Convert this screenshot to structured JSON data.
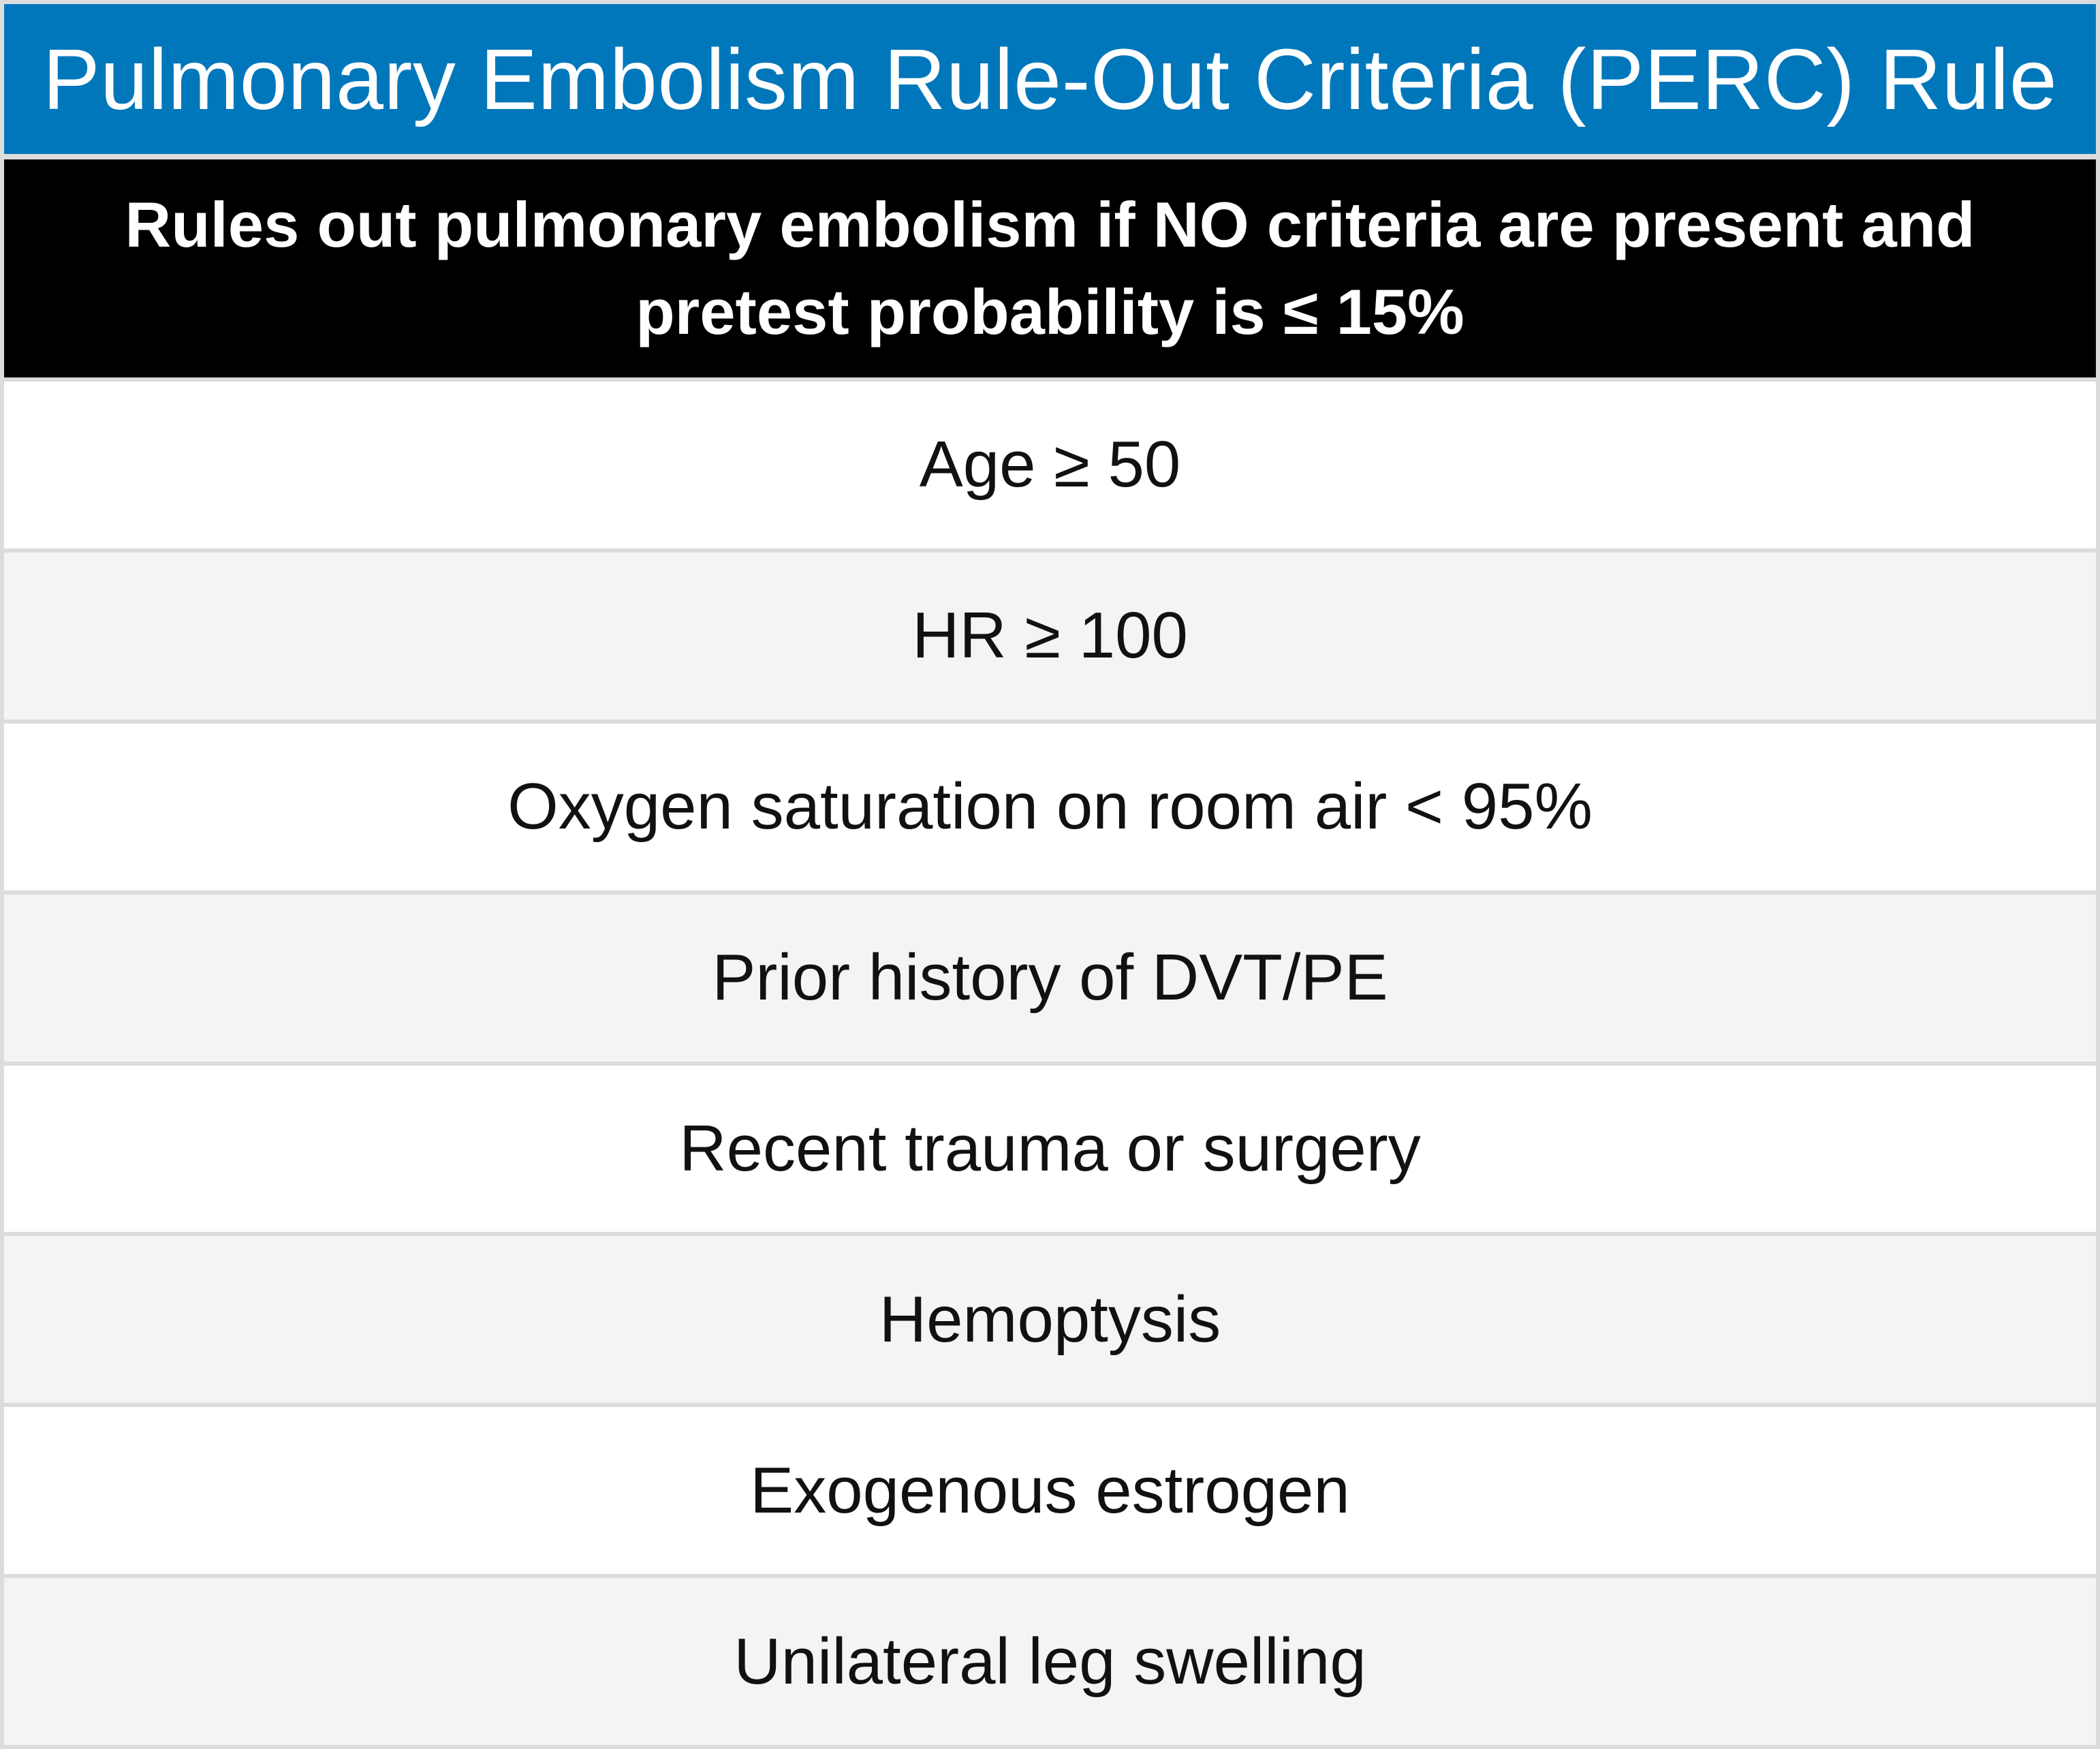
{
  "title": "Pulmonary Embolism Rule-Out Criteria (PERC) Rule",
  "subtitle": "Rules out pulmonary embolism if NO criteria are present and pretest probability is ≤ 15%",
  "criteria": [
    "Age ≥ 50",
    "HR ≥ 100",
    "Oxygen saturation on room air < 95%",
    "Prior history of DVT/PE",
    "Recent trauma or surgery",
    "Hemoptysis",
    "Exogenous estrogen",
    "Unilateral leg swelling"
  ],
  "colors": {
    "title_background": "#0177bb",
    "subtitle_background": "#000000",
    "row_alt_background": "#f4f4f4",
    "border": "#dcdcdc"
  }
}
